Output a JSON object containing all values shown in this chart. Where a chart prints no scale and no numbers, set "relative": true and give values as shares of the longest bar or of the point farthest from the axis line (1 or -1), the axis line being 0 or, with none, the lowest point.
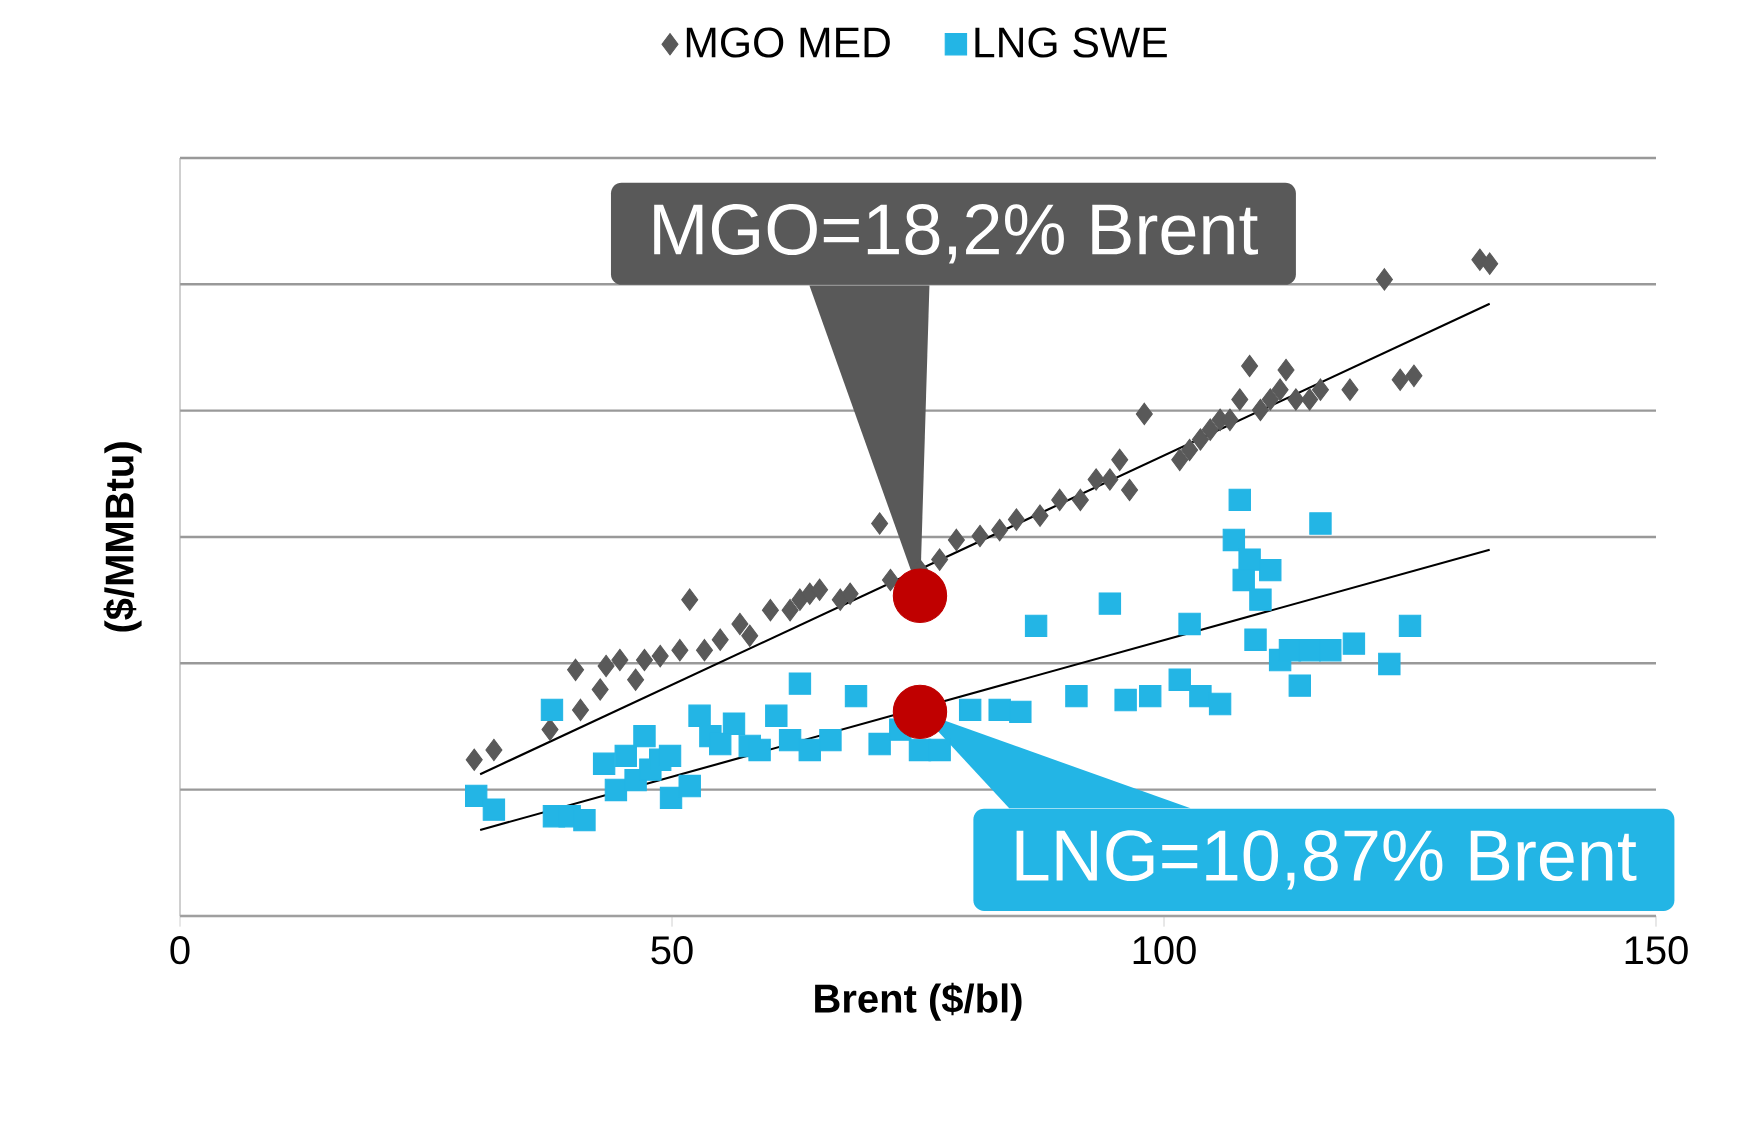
{
  "chart_data": {
    "type": "scatter",
    "relative": true,
    "xlabel": "Brent ($/bl)",
    "ylabel": "($/MMBtu)",
    "xlim": [
      0,
      150
    ],
    "xticks": [
      0,
      50,
      100,
      150
    ],
    "grid": "y",
    "legend": "top",
    "series": [
      {
        "name": "MGO MED",
        "type": "scatter",
        "marker": "diamond",
        "color": "#595959",
        "x": [
          29.9,
          31.9,
          37.6,
          40.2,
          40.7,
          42.7,
          43.3,
          44.7,
          46.3,
          47.2,
          48.8,
          51.8,
          50.8,
          53.3,
          54.9,
          56.9,
          57.9,
          60.0,
          62.0,
          63.0,
          64.0,
          65.0,
          67.1,
          68.1,
          71.1,
          72.2,
          75.2,
          77.2,
          78.9,
          81.3,
          83.3,
          85.0,
          87.4,
          89.4,
          91.5,
          93.1,
          94.5,
          95.5,
          96.5,
          98.0,
          101.6,
          102.6,
          103.7,
          104.7,
          105.7,
          106.7,
          107.7,
          108.7,
          109.8,
          110.8,
          111.8,
          112.4,
          113.4,
          114.8,
          115.9,
          118.9,
          122.4,
          124.0,
          125.4,
          132.1,
          133.1
        ],
        "values": [
          0.238,
          0.253,
          0.284,
          0.375,
          0.314,
          0.345,
          0.381,
          0.39,
          0.36,
          0.39,
          0.396,
          0.482,
          0.405,
          0.405,
          0.421,
          0.445,
          0.427,
          0.466,
          0.466,
          0.482,
          0.491,
          0.497,
          0.482,
          0.491,
          0.598,
          0.512,
          0.527,
          0.543,
          0.573,
          0.579,
          0.588,
          0.604,
          0.61,
          0.634,
          0.634,
          0.665,
          0.665,
          0.695,
          0.649,
          0.765,
          0.695,
          0.71,
          0.726,
          0.741,
          0.756,
          0.756,
          0.787,
          0.838,
          0.771,
          0.787,
          0.802,
          0.832,
          0.787,
          0.787,
          0.802,
          0.802,
          0.97,
          0.817,
          0.823,
          1.0,
          0.994
        ]
      },
      {
        "name": "LNG SWE",
        "type": "scatter",
        "marker": "square",
        "color": "#23b5e5",
        "x": [
          30.1,
          31.9,
          37.8,
          38.0,
          39.6,
          41.1,
          43.1,
          44.3,
          45.3,
          46.3,
          47.2,
          47.8,
          48.8,
          49.8,
          49.9,
          51.8,
          52.8,
          53.9,
          54.9,
          56.3,
          57.9,
          58.9,
          60.6,
          62.0,
          63.0,
          64.0,
          66.1,
          68.7,
          71.1,
          73.2,
          75.2,
          77.2,
          80.3,
          83.3,
          85.4,
          87.0,
          91.1,
          94.5,
          96.1,
          98.6,
          101.6,
          102.6,
          103.7,
          105.7,
          107.1,
          107.7,
          108.1,
          108.7,
          109.3,
          109.8,
          110.8,
          111.8,
          112.8,
          113.8,
          114.8,
          115.9,
          116.9,
          119.3,
          122.9,
          125.0
        ],
        "values": [
          0.183,
          0.162,
          0.314,
          0.152,
          0.152,
          0.146,
          0.232,
          0.192,
          0.244,
          0.207,
          0.274,
          0.223,
          0.238,
          0.244,
          0.18,
          0.198,
          0.305,
          0.274,
          0.262,
          0.293,
          0.259,
          0.253,
          0.305,
          0.268,
          0.354,
          0.253,
          0.268,
          0.335,
          0.262,
          0.284,
          0.253,
          0.253,
          0.314,
          0.314,
          0.311,
          0.442,
          0.335,
          0.476,
          0.329,
          0.335,
          0.36,
          0.445,
          0.335,
          0.323,
          0.573,
          0.634,
          0.512,
          0.543,
          0.421,
          0.482,
          0.527,
          0.39,
          0.405,
          0.351,
          0.405,
          0.598,
          0.405,
          0.415,
          0.384,
          0.442
        ]
      },
      {
        "type": "line",
        "color": "#000000",
        "marker": "none",
        "x": [
          30.5,
          133.1
        ],
        "values": [
          0.216,
          0.933
        ]
      },
      {
        "type": "line",
        "color": "#000000",
        "marker": "none",
        "x": [
          30.5,
          133.1
        ],
        "values": [
          0.131,
          0.558
        ]
      },
      {
        "type": "scatter",
        "marker": "circle",
        "color": "#c00000",
        "x": [
          75.2,
          75.2
        ],
        "values": [
          0.488,
          0.311
        ]
      }
    ],
    "annotations": [
      {
        "text": "MGO=18,2% Brent",
        "x": 75.2,
        "y": 0.488
      },
      {
        "text": "LNG=10,87% Brent",
        "x": 75.2,
        "y": 0.311
      }
    ]
  }
}
